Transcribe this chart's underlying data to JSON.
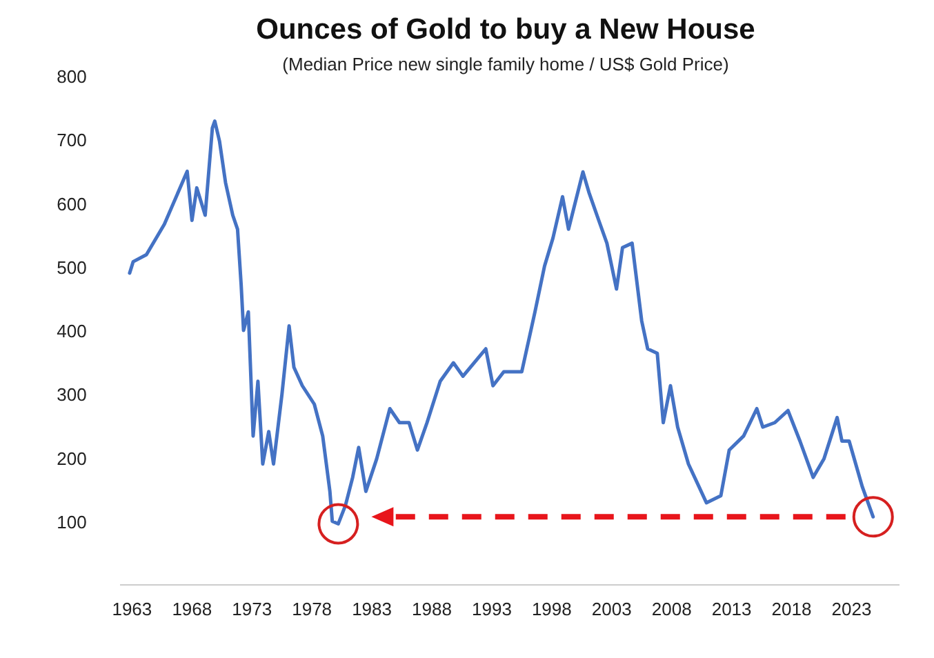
{
  "chart_data": {
    "type": "line",
    "title": "Ounces of Gold to buy a New House",
    "subtitle": "(Median Price new single family home / US$ Gold Price)",
    "x": [
      1962.8,
      1963.1,
      1964.2,
      1965.7,
      1967.6,
      1968.0,
      1968.4,
      1969.1,
      1969.7,
      1969.9,
      1970.3,
      1970.8,
      1971.4,
      1971.8,
      1972.1,
      1972.3,
      1972.7,
      1973.1,
      1973.5,
      1973.9,
      1974.4,
      1974.8,
      1975.5,
      1976.1,
      1976.5,
      1977.2,
      1978.2,
      1978.9,
      1979.5,
      1979.7,
      1980.2,
      1980.8,
      1981.4,
      1981.9,
      1982.5,
      1983.4,
      1984.5,
      1985.3,
      1986.1,
      1986.8,
      1987.6,
      1988.7,
      1989.8,
      1990.6,
      1992.5,
      1993.1,
      1994.0,
      1995.5,
      1996.6,
      1997.4,
      1998.1,
      1998.9,
      1999.4,
      2000.6,
      2001.1,
      2001.9,
      2002.6,
      2003.4,
      2003.9,
      2004.7,
      2005.5,
      2006.0,
      2006.8,
      2007.3,
      2007.9,
      2008.5,
      2009.4,
      2010.9,
      2012.1,
      2012.8,
      2014.0,
      2015.1,
      2015.6,
      2016.6,
      2017.7,
      2018.7,
      2019.8,
      2020.7,
      2021.8,
      2022.2,
      2022.8,
      2023.9,
      2024.8
    ],
    "series": [
      {
        "color": "#4472c4",
        "values": [
          490,
          508,
          519,
          567,
          650,
          573,
          624,
          581,
          718,
          729,
          697,
          632,
          581,
          559,
          472,
          400,
          429,
          234,
          320,
          190,
          241,
          190,
          299,
          407,
          342,
          313,
          284,
          234,
          147,
          100,
          96,
          125,
          169,
          216,
          147,
          198,
          277,
          255,
          255,
          212,
          255,
          320,
          349,
          328,
          371,
          313,
          335,
          335,
          429,
          501,
          545,
          610,
          559,
          649,
          617,
          574,
          537,
          465,
          530,
          537,
          415,
          371,
          364,
          255,
          313,
          248,
          190,
          129,
          140,
          212,
          234,
          277,
          248,
          255,
          274,
          226,
          169,
          198,
          263,
          226,
          226,
          154,
          107
        ]
      }
    ],
    "xlim": [
      1962,
      2027
    ],
    "xticks": [
      1963,
      1968,
      1973,
      1978,
      1983,
      1988,
      1993,
      1998,
      2003,
      2008,
      2013,
      2018,
      2023
    ],
    "ylim": [
      0,
      800
    ],
    "yticks": [
      100,
      200,
      300,
      400,
      500,
      600,
      700,
      800
    ],
    "grid": false,
    "marker": "none",
    "line_style": "solid"
  }
}
